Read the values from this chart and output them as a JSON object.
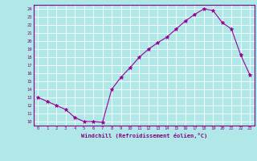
{
  "x": [
    0,
    1,
    2,
    3,
    4,
    5,
    6,
    7,
    8,
    9,
    10,
    11,
    12,
    13,
    14,
    15,
    16,
    17,
    18,
    19,
    20,
    21,
    22,
    23
  ],
  "y": [
    13,
    12.5,
    12,
    11.5,
    10.5,
    10,
    10,
    9.9,
    14,
    15.5,
    16.7,
    18,
    19,
    19.8,
    20.5,
    21.5,
    22.5,
    23.3,
    24,
    23.8,
    22.3,
    21.5,
    18.3,
    15.8
  ],
  "line_color": "#990099",
  "marker": "*",
  "bg_color": "#b0e8e8",
  "grid_color": "#ffffff",
  "xlabel": "Windchill (Refroidissement éolien,°C)",
  "xlim": [
    -0.5,
    23.5
  ],
  "ylim": [
    9.5,
    24.5
  ],
  "yticks": [
    10,
    11,
    12,
    13,
    14,
    15,
    16,
    17,
    18,
    19,
    20,
    21,
    22,
    23,
    24
  ],
  "xticks": [
    0,
    1,
    2,
    3,
    4,
    5,
    6,
    7,
    8,
    9,
    10,
    11,
    12,
    13,
    14,
    15,
    16,
    17,
    18,
    19,
    20,
    21,
    22,
    23
  ],
  "label_color": "#880088",
  "tick_color": "#880088",
  "spine_color": "#880088"
}
